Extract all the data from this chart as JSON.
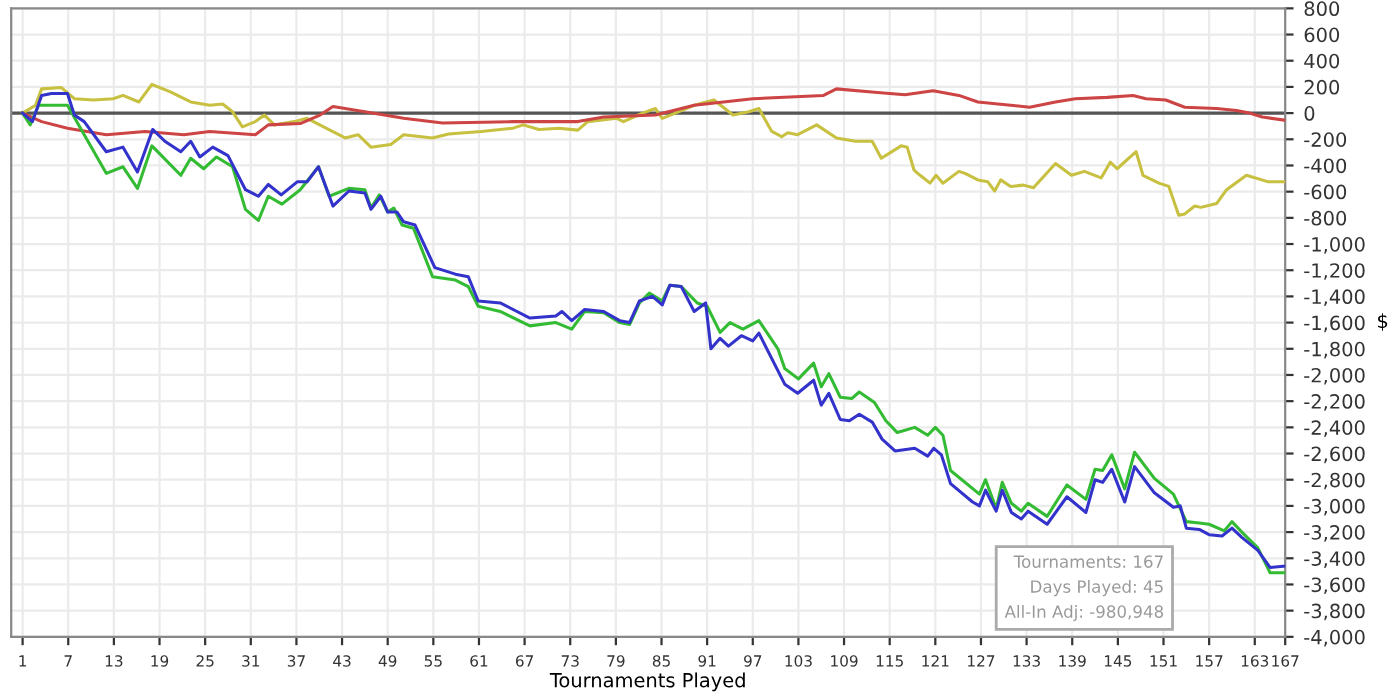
{
  "chart_data": {
    "type": "line",
    "xlabel": "Tournaments Played",
    "ylabel": "$",
    "xlim": [
      -0.5,
      167
    ],
    "xticks": [
      1,
      7,
      13,
      19,
      25,
      31,
      37,
      43,
      49,
      55,
      61,
      67,
      73,
      79,
      85,
      91,
      97,
      103,
      109,
      115,
      121,
      127,
      133,
      139,
      145,
      151,
      157,
      163,
      167
    ],
    "ylim": [
      -4000,
      800
    ],
    "yticks": [
      800,
      600,
      400,
      200,
      0,
      -200,
      -400,
      -600,
      -800,
      {
        "value": -1000,
        "label": "-1,000"
      },
      {
        "value": -1200,
        "label": "-1,200"
      },
      {
        "value": -1400,
        "label": "-1,400"
      },
      {
        "value": -1600,
        "label": "-1,600"
      },
      {
        "value": -1800,
        "label": "-1,800"
      },
      {
        "value": -2000,
        "label": "-2,000"
      },
      {
        "value": -2200,
        "label": "-2,200"
      },
      {
        "value": -2400,
        "label": "-2,400"
      },
      {
        "value": -2600,
        "label": "-2,600"
      },
      {
        "value": -2800,
        "label": "-2,800"
      },
      {
        "value": -3000,
        "label": "-3,000"
      },
      {
        "value": -3200,
        "label": "-3,200"
      },
      {
        "value": -3400,
        "label": "-3,400"
      },
      {
        "value": -3600,
        "label": "-3,600"
      },
      {
        "value": -3800,
        "label": "-3,800"
      },
      {
        "value": -4000,
        "label": "-4,000"
      }
    ],
    "grid": true,
    "marker": "none",
    "line_style": "solid",
    "ref_lines": [
      {
        "axis": "y",
        "value": 0,
        "color": "#555555"
      }
    ],
    "annotations": [
      "Tournaments: 167",
      "Days Played: 45",
      "All-In Adj: -980,948"
    ],
    "series": [
      {
        "color": "#c8c040",
        "x": [
          1,
          2.7,
          3.5,
          6.1,
          7.8,
          10.3,
          12.9,
          14.2,
          16.3,
          18,
          20.5,
          23.1,
          25.6,
          27.3,
          28.6,
          29.9,
          31.6,
          32.8,
          34.1,
          36.7,
          38.4,
          40.9,
          43.4,
          45.1,
          46.8,
          49.4,
          51.1,
          54.9,
          57,
          61.3,
          65.5,
          66.8,
          68.9,
          71.5,
          74,
          75.3,
          79.1,
          80,
          82.5,
          84.2,
          85.1,
          86.8,
          89.3,
          91.9,
          94.4,
          96.5,
          97.8,
          99.5,
          100.8,
          101.6,
          102.9,
          105.4,
          108,
          110.5,
          112.7,
          113.9,
          116.5,
          117.3,
          118.2,
          119,
          120.3,
          121.1,
          122,
          124.1,
          124.9,
          126.6,
          127.9,
          128.8,
          129.6,
          130.9,
          132.6,
          133.9,
          136.8,
          138.9,
          140.6,
          142.8,
          144,
          144.9,
          147.4,
          148.3,
          150.4,
          151.7,
          153,
          153.8,
          155.1,
          155.9,
          158,
          159.3,
          161.9,
          164.8,
          167
        ],
        "values": [
          0,
          60,
          185,
          195,
          110,
          100,
          110,
          135,
          85,
          220,
          160,
          85,
          60,
          70,
          10,
          -105,
          -65,
          -15,
          -90,
          -65,
          -40,
          -115,
          -190,
          -165,
          -260,
          -240,
          -165,
          -190,
          -160,
          -140,
          -115,
          -90,
          -125,
          -115,
          -130,
          -65,
          -40,
          -65,
          0,
          35,
          -40,
          0,
          60,
          100,
          -15,
          10,
          35,
          -140,
          -180,
          -150,
          -165,
          -90,
          -190,
          -215,
          -215,
          -345,
          -250,
          -260,
          -435,
          -475,
          -535,
          -475,
          -535,
          -445,
          -460,
          -510,
          -525,
          -595,
          -510,
          -560,
          -550,
          -570,
          -385,
          -475,
          -445,
          -495,
          -375,
          -425,
          -295,
          -475,
          -535,
          -560,
          -780,
          -770,
          -710,
          -720,
          -690,
          -585,
          -475,
          -525,
          -525
        ]
      },
      {
        "color": "#cc4444",
        "x": [
          1,
          3.5,
          6.9,
          12,
          17.1,
          22.2,
          25.6,
          31.6,
          33.3,
          37.5,
          40.1,
          41.8,
          46,
          51.1,
          56.2,
          65.5,
          74,
          77.4,
          84.2,
          89.3,
          97,
          106.3,
          108,
          113,
          117,
          120.7,
          124.1,
          126.6,
          130.9,
          133.4,
          136.8,
          139.4,
          143.6,
          147,
          148.7,
          151.3,
          153.8,
          158,
          160.6,
          162.3,
          164,
          167
        ],
        "values": [
          0,
          -65,
          -115,
          -165,
          -140,
          -165,
          -140,
          -165,
          -90,
          -80,
          -15,
          50,
          10,
          -40,
          -75,
          -65,
          -65,
          -30,
          -15,
          60,
          110,
          135,
          185,
          160,
          140,
          170,
          135,
          85,
          60,
          45,
          85,
          110,
          120,
          135,
          110,
          100,
          45,
          35,
          20,
          0,
          -30,
          -55
        ]
      },
      {
        "color": "#33bb33",
        "x": [
          1,
          2,
          3.1,
          6.9,
          9.1,
          12,
          14.2,
          16.1,
          18,
          21.8,
          23.1,
          24.8,
          26.5,
          28.6,
          30.3,
          32,
          33.3,
          35.1,
          37.5,
          39.9,
          41.3,
          43.9,
          46,
          46.8,
          47.9,
          49,
          49.8,
          50.9,
          52.4,
          54.9,
          57.9,
          59.6,
          60.9,
          63.8,
          67.7,
          71.1,
          73.2,
          74.9,
          77.4,
          79.5,
          80.8,
          82.1,
          83.4,
          85.1,
          86.1,
          87.6,
          89.7,
          91,
          92.7,
          94,
          95.7,
          97.8,
          100.3,
          101.2,
          103,
          105,
          106,
          107,
          108.5,
          110,
          111,
          113,
          114.5,
          116,
          118.3,
          120,
          121,
          122,
          123,
          126.8,
          127.6,
          129,
          129.8,
          131,
          132.3,
          133.2,
          135.7,
          138.3,
          140.8,
          142,
          143,
          144.2,
          145.9,
          147.2,
          149.8,
          152.3,
          154,
          155.7,
          157,
          159,
          160,
          161.3,
          163.4,
          165,
          167
        ],
        "values": [
          0,
          -90,
          60,
          60,
          -165,
          -460,
          -410,
          -575,
          -250,
          -475,
          -345,
          -425,
          -335,
          -410,
          -735,
          -820,
          -635,
          -695,
          -585,
          -410,
          -635,
          -575,
          -585,
          -725,
          -625,
          -755,
          -725,
          -855,
          -880,
          -1250,
          -1275,
          -1325,
          -1475,
          -1515,
          -1625,
          -1600,
          -1650,
          -1515,
          -1525,
          -1600,
          -1615,
          -1450,
          -1375,
          -1435,
          -1315,
          -1325,
          -1450,
          -1475,
          -1675,
          -1600,
          -1650,
          -1585,
          -1800,
          -1950,
          -2030,
          -1910,
          -2090,
          -1990,
          -2170,
          -2180,
          -2130,
          -2210,
          -2350,
          -2440,
          -2400,
          -2460,
          -2400,
          -2460,
          -2730,
          -2910,
          -2800,
          -3020,
          -2820,
          -2980,
          -3040,
          -2980,
          -3080,
          -2840,
          -2950,
          -2720,
          -2730,
          -2610,
          -2870,
          -2590,
          -2790,
          -2910,
          -3120,
          -3130,
          -3140,
          -3190,
          -3120,
          -3200,
          -3320,
          -3510,
          -3510
        ]
      },
      {
        "color": "#3333cc",
        "x": [
          1,
          2.3,
          3.5,
          4.8,
          6.9,
          7.8,
          9.1,
          12,
          14.2,
          16.1,
          18.1,
          19.7,
          21.8,
          23.1,
          24.3,
          26,
          28,
          30.3,
          32,
          33.3,
          35,
          37.1,
          38.4,
          39.9,
          41.8,
          43.9,
          46,
          46.8,
          48.1,
          49,
          50.2,
          51.1,
          52.6,
          55.2,
          57.9,
          59.6,
          60.9,
          63.8,
          67.7,
          71.1,
          71.9,
          73.2,
          74.9,
          77.4,
          79.5,
          80.8,
          82.1,
          83.8,
          85.1,
          86.1,
          87.6,
          89.3,
          90.8,
          91.5,
          92.7,
          93.8,
          95.5,
          97,
          97.8,
          101.2,
          102.9,
          105,
          106,
          107,
          108.5,
          109.7,
          111,
          112.7,
          114,
          115.7,
          118.3,
          120,
          120.8,
          121.8,
          123,
          125.9,
          126.8,
          127.6,
          129,
          129.8,
          131,
          132.3,
          133.2,
          135.7,
          138.3,
          140.8,
          142,
          143,
          144.2,
          145.9,
          147.2,
          149.8,
          152.3,
          153.2,
          154,
          155.7,
          157,
          158.7,
          160,
          161.3,
          163.4,
          165,
          167
        ],
        "values": [
          0,
          -65,
          135,
          150,
          150,
          -15,
          -65,
          -295,
          -260,
          -450,
          -125,
          -215,
          -295,
          -215,
          -335,
          -260,
          -325,
          -585,
          -635,
          -545,
          -625,
          -525,
          -525,
          -410,
          -710,
          -595,
          -610,
          -735,
          -635,
          -755,
          -755,
          -830,
          -855,
          -1180,
          -1230,
          -1250,
          -1435,
          -1450,
          -1565,
          -1550,
          -1515,
          -1585,
          -1500,
          -1515,
          -1585,
          -1600,
          -1435,
          -1400,
          -1465,
          -1315,
          -1325,
          -1515,
          -1450,
          -1800,
          -1720,
          -1780,
          -1700,
          -1740,
          -1680,
          -2070,
          -2140,
          -2040,
          -2230,
          -2140,
          -2340,
          -2350,
          -2300,
          -2360,
          -2490,
          -2580,
          -2560,
          -2620,
          -2560,
          -2610,
          -2830,
          -2970,
          -3000,
          -2880,
          -3040,
          -2880,
          -3050,
          -3100,
          -3040,
          -3140,
          -2930,
          -3050,
          -2800,
          -2820,
          -2720,
          -2970,
          -2700,
          -2900,
          -3010,
          -3000,
          -3170,
          -3180,
          -3220,
          -3230,
          -3170,
          -3240,
          -3340,
          -3470,
          -3460
        ]
      }
    ]
  }
}
